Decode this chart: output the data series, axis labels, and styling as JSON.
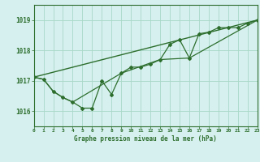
{
  "title": "Graphe pression niveau de la mer (hPa)",
  "bg_color": "#d6f0ef",
  "grid_color": "#a8d8c8",
  "line_color": "#2d6e2d",
  "x_min": 0,
  "x_max": 23,
  "y_min": 1015.5,
  "y_max": 1019.5,
  "y_ticks": [
    1016,
    1017,
    1018,
    1019
  ],
  "x_ticks": [
    0,
    1,
    2,
    3,
    4,
    5,
    6,
    7,
    8,
    9,
    10,
    11,
    12,
    13,
    14,
    15,
    16,
    17,
    18,
    19,
    20,
    21,
    22,
    23
  ],
  "series1_x": [
    0,
    1,
    2,
    3,
    4,
    5,
    6,
    7,
    8,
    9,
    10,
    11,
    12,
    13,
    14,
    15,
    16,
    17,
    18,
    19,
    20,
    21,
    22,
    23
  ],
  "series1_y": [
    1017.12,
    1017.05,
    1016.65,
    1016.45,
    1016.3,
    1016.1,
    1016.1,
    1017.0,
    1016.55,
    1017.25,
    1017.45,
    1017.45,
    1017.55,
    1017.7,
    1018.2,
    1018.35,
    1017.75,
    1018.55,
    1018.6,
    1018.75,
    1018.75,
    1018.75,
    1018.9,
    1019.0
  ],
  "series2_x": [
    0,
    23
  ],
  "series2_y": [
    1017.12,
    1019.0
  ],
  "series3_x": [
    0,
    1,
    2,
    3,
    4,
    9,
    13,
    16,
    23
  ],
  "series3_y": [
    1017.12,
    1017.05,
    1016.65,
    1016.45,
    1016.3,
    1017.25,
    1017.7,
    1017.75,
    1019.0
  ],
  "figwidth": 3.2,
  "figheight": 2.0,
  "dpi": 100
}
